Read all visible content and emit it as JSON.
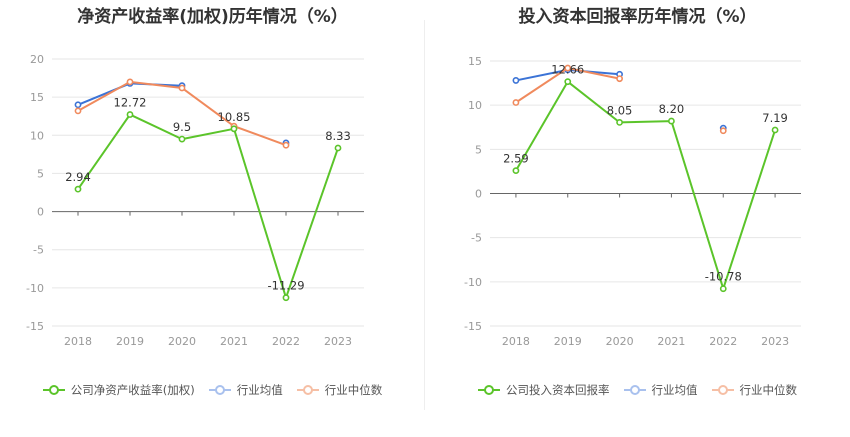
{
  "colors": {
    "company": "#5bc42a",
    "avg": "#3b73d6",
    "median": "#f08a5d",
    "axis_text": "#999999",
    "grid": "#e6e6e6"
  },
  "chart_data": [
    {
      "type": "line",
      "title": "净资产收益率(加权)历年情况（%）",
      "categories": [
        "2018",
        "2019",
        "2020",
        "2021",
        "2022",
        "2023"
      ],
      "y_ticks": [
        "20",
        "15",
        "10",
        "5",
        "0",
        "-5",
        "-10",
        "-15"
      ],
      "ylim": [
        -15,
        20
      ],
      "grid": true,
      "legend_position": "bottom",
      "series": [
        {
          "name": "公司净资产收益率(加权)",
          "key": "company",
          "values": [
            2.94,
            12.72,
            9.5,
            10.85,
            -11.29,
            8.33
          ],
          "labels": [
            "2.94",
            "12.72",
            "9.5",
            "10.85",
            "-11.29",
            "8.33"
          ]
        },
        {
          "name": "行业均值",
          "key": "avg",
          "values": [
            14.0,
            16.8,
            16.5,
            null,
            9.0,
            null
          ]
        },
        {
          "name": "行业中位数",
          "key": "median",
          "values": [
            13.2,
            17.0,
            16.2,
            11.2,
            8.7,
            null
          ]
        }
      ]
    },
    {
      "type": "line",
      "title": "投入资本回报率历年情况（%）",
      "categories": [
        "2018",
        "2019",
        "2020",
        "2021",
        "2022",
        "2023"
      ],
      "y_ticks": [
        "15",
        "10",
        "5",
        "0",
        "-5",
        "-10",
        "-15"
      ],
      "ylim": [
        -15,
        15
      ],
      "grid": true,
      "legend_position": "bottom",
      "series": [
        {
          "name": "公司投入资本回报率",
          "key": "company",
          "values": [
            2.59,
            12.66,
            8.05,
            8.2,
            -10.78,
            7.19
          ],
          "labels": [
            "2.59",
            "12.66",
            "8.05",
            "8.20",
            "-10.78",
            "7.19"
          ]
        },
        {
          "name": "行业均值",
          "key": "avg",
          "values": [
            12.8,
            14.0,
            13.5,
            null,
            7.4,
            null
          ]
        },
        {
          "name": "行业中位数",
          "key": "median",
          "values": [
            10.3,
            14.2,
            13.0,
            null,
            7.1,
            null
          ]
        }
      ]
    }
  ]
}
